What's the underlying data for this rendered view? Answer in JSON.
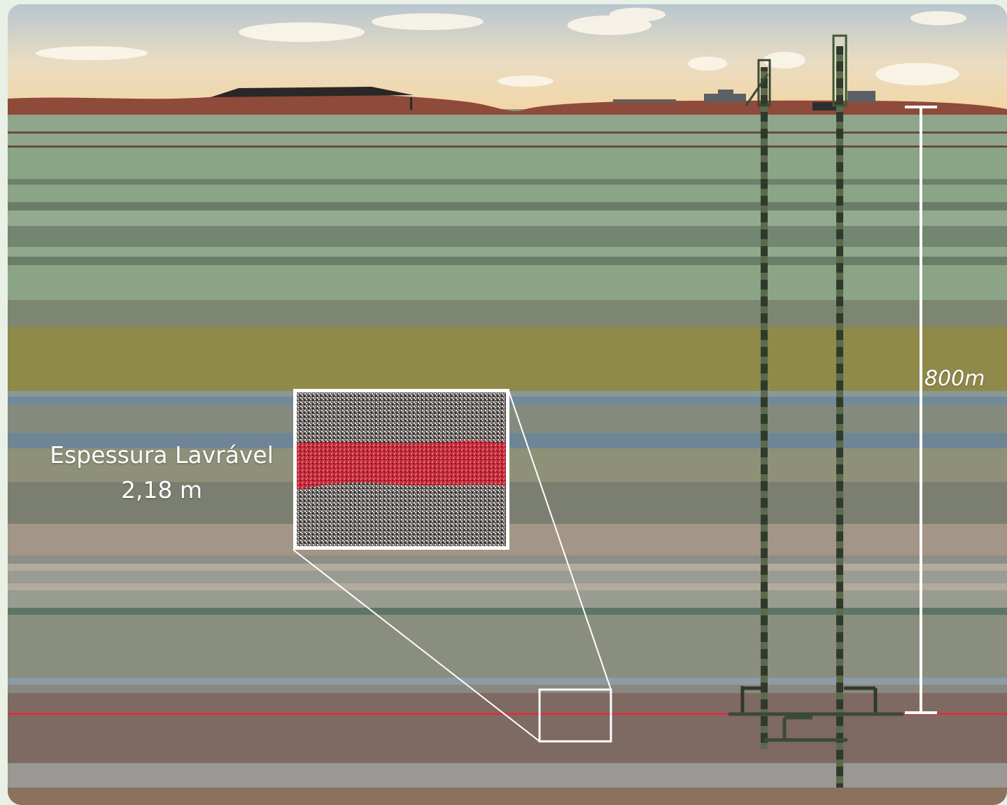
{
  "labels": {
    "mineable_thickness_title": "Espessura Lavrável",
    "mineable_thickness_value": "2,18 m",
    "depth": "800m"
  },
  "colors": {
    "ore_seam": "#d8323c",
    "frame_outline": "#ffffff",
    "surface": "#8e4a3a"
  }
}
